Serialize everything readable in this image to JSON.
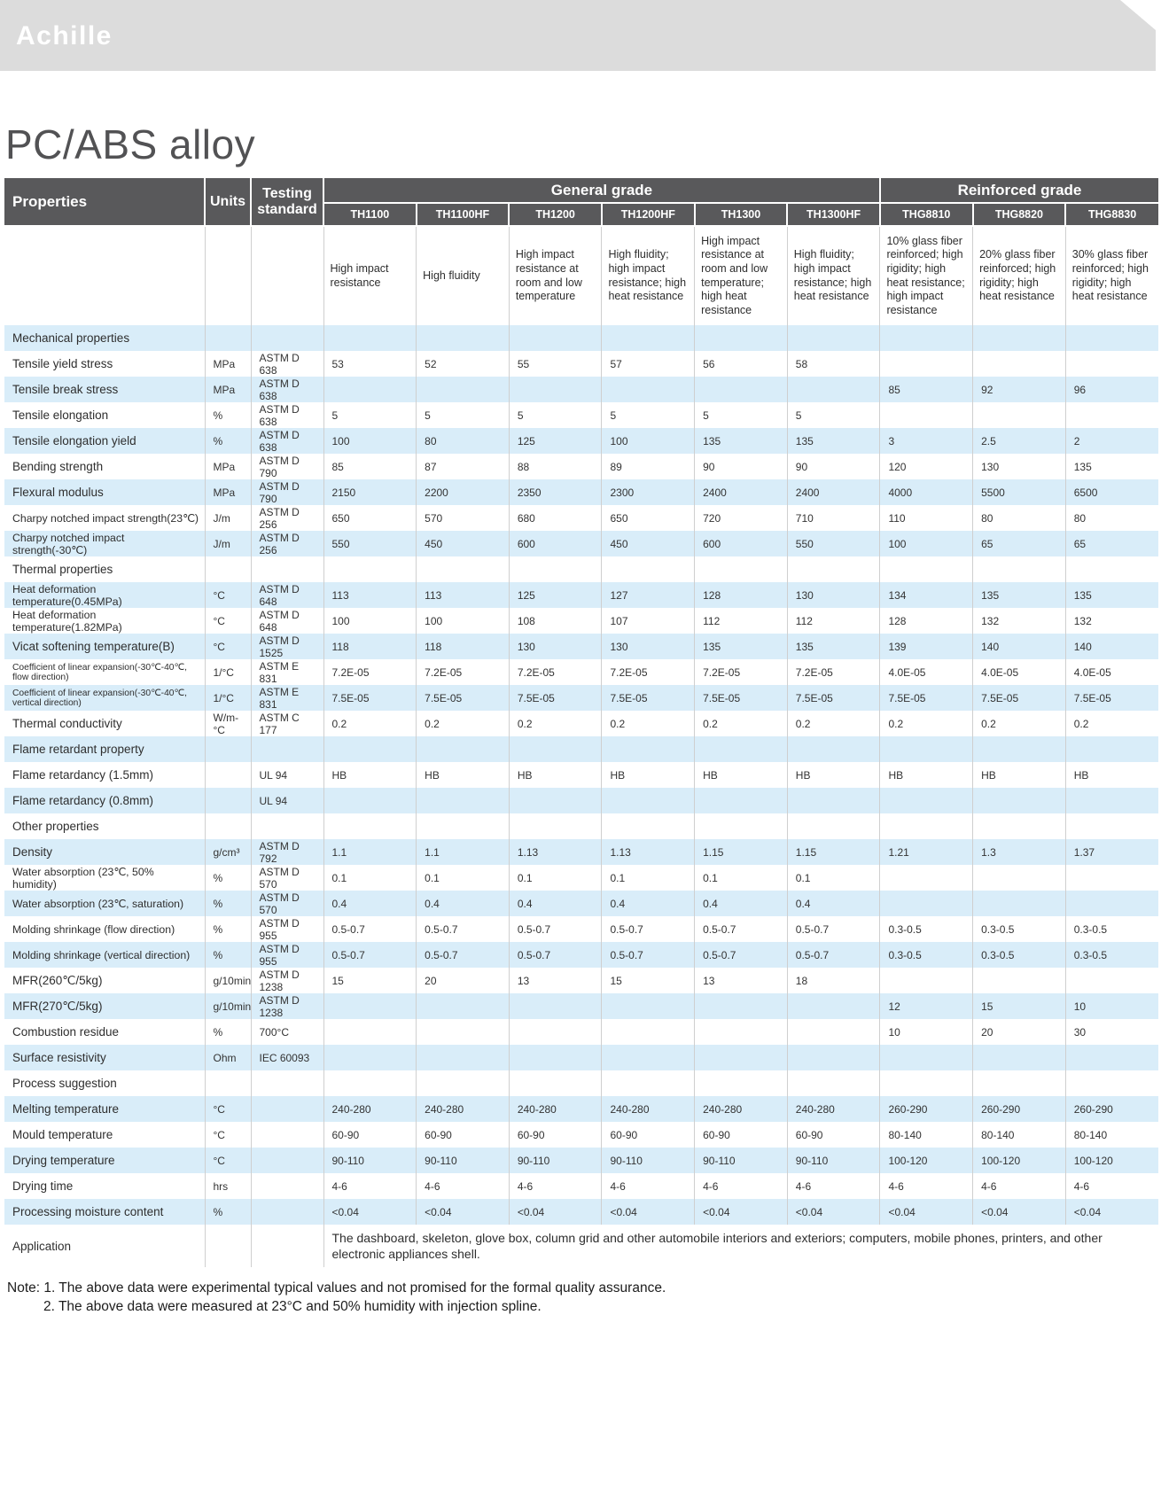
{
  "brand": "Achille",
  "page_title": "PC/ABS alloy",
  "table": {
    "col_headers": {
      "properties": "Properties",
      "units": "Units",
      "testing_standard": "Testing standard"
    },
    "groups": [
      {
        "label": "General grade",
        "span": 6
      },
      {
        "label": "Reinforced grade",
        "span": 3
      }
    ],
    "grades": [
      "TH1100",
      "TH1100HF",
      "TH1200",
      "TH1200HF",
      "TH1300",
      "TH1300HF",
      "THG8810",
      "THG8820",
      "THG8830"
    ],
    "descriptions": [
      "High impact resistance",
      "High fluidity",
      "High impact resistance at room and low temperature",
      "High fluidity; high impact resistance; high heat resistance",
      "High impact resistance at room and low temperature; high heat resistance",
      "High fluidity; high impact resistance; high heat resistance",
      "10% glass fiber reinforced; high rigidity; high heat resistance; high impact resistance",
      "20% glass fiber reinforced; high rigidity; high heat resistance",
      "30% glass fiber reinforced; high rigidity; high heat resistance"
    ],
    "rows": [
      {
        "type": "section",
        "label": "Mechanical properties"
      },
      {
        "label": "Tensile yield stress",
        "unit": "MPa",
        "standard": "ASTM D 638",
        "values": [
          "53",
          "52",
          "55",
          "57",
          "56",
          "58",
          "",
          "",
          ""
        ]
      },
      {
        "label": "Tensile break stress",
        "unit": "MPa",
        "standard": "ASTM D 638",
        "values": [
          "",
          "",
          "",
          "",
          "",
          "",
          "85",
          "92",
          "96"
        ]
      },
      {
        "label": "Tensile elongation",
        "unit": "%",
        "standard": "ASTM D 638",
        "values": [
          "5",
          "5",
          "5",
          "5",
          "5",
          "5",
          "",
          "",
          ""
        ]
      },
      {
        "label": "Tensile elongation yield",
        "unit": "%",
        "standard": "ASTM D 638",
        "values": [
          "100",
          "80",
          "125",
          "100",
          "135",
          "135",
          "3",
          "2.5",
          "2"
        ]
      },
      {
        "label": "Bending strength",
        "unit": "MPa",
        "standard": "ASTM D 790",
        "values": [
          "85",
          "87",
          "88",
          "89",
          "90",
          "90",
          "120",
          "130",
          "135"
        ]
      },
      {
        "label": "Flexural modulus",
        "unit": "MPa",
        "standard": "ASTM D 790",
        "values": [
          "2150",
          "2200",
          "2350",
          "2300",
          "2400",
          "2400",
          "4000",
          "5500",
          "6500"
        ]
      },
      {
        "label": "Charpy notched impact strength(23℃)",
        "unit": "J/m",
        "standard": "ASTM D 256",
        "values": [
          "650",
          "570",
          "680",
          "650",
          "720",
          "710",
          "110",
          "80",
          "80"
        ]
      },
      {
        "label": "Charpy notched impact strength(-30℃)",
        "unit": "J/m",
        "standard": "ASTM D 256",
        "values": [
          "550",
          "450",
          "600",
          "450",
          "600",
          "550",
          "100",
          "65",
          "65"
        ]
      },
      {
        "type": "section",
        "label": "Thermal properties"
      },
      {
        "label": "Heat deformation temperature(0.45MPa)",
        "unit": "°C",
        "standard": "ASTM D 648",
        "values": [
          "113",
          "113",
          "125",
          "127",
          "128",
          "130",
          "134",
          "135",
          "135"
        ]
      },
      {
        "label": "Heat deformation temperature(1.82MPa)",
        "unit": "°C",
        "standard": "ASTM D 648",
        "values": [
          "100",
          "100",
          "108",
          "107",
          "112",
          "112",
          "128",
          "132",
          "132"
        ]
      },
      {
        "label": "Vicat softening temperature(B)",
        "unit": "°C",
        "standard": "ASTM D 1525",
        "values": [
          "118",
          "118",
          "130",
          "130",
          "135",
          "135",
          "139",
          "140",
          "140"
        ]
      },
      {
        "label": "Coefficient of linear expansion(-30℃-40℃, flow direction)",
        "unit": "1/°C",
        "standard": "ASTM E 831",
        "values": [
          "7.2E-05",
          "7.2E-05",
          "7.2E-05",
          "7.2E-05",
          "7.2E-05",
          "7.2E-05",
          "4.0E-05",
          "4.0E-05",
          "4.0E-05"
        ]
      },
      {
        "label": "Coefficient of linear expansion(-30℃-40℃, vertical direction)",
        "unit": "1/°C",
        "standard": "ASTM E 831",
        "values": [
          "7.5E-05",
          "7.5E-05",
          "7.5E-05",
          "7.5E-05",
          "7.5E-05",
          "7.5E-05",
          "7.5E-05",
          "7.5E-05",
          "7.5E-05"
        ]
      },
      {
        "label": "Thermal conductivity",
        "unit": "W/m-°C",
        "standard": "ASTM C 177",
        "values": [
          "0.2",
          "0.2",
          "0.2",
          "0.2",
          "0.2",
          "0.2",
          "0.2",
          "0.2",
          "0.2"
        ]
      },
      {
        "type": "section",
        "label": "Flame retardant property"
      },
      {
        "label": "Flame retardancy (1.5mm)",
        "unit": "",
        "standard": "UL 94",
        "values": [
          "HB",
          "HB",
          "HB",
          "HB",
          "HB",
          "HB",
          "HB",
          "HB",
          "HB"
        ]
      },
      {
        "label": "Flame retardancy (0.8mm)",
        "unit": "",
        "standard": "UL 94",
        "values": [
          "",
          "",
          "",
          "",
          "",
          "",
          "",
          "",
          ""
        ]
      },
      {
        "type": "section",
        "label": "Other properties"
      },
      {
        "label": "Density",
        "unit": "g/cm³",
        "standard": "ASTM D 792",
        "values": [
          "1.1",
          "1.1",
          "1.13",
          "1.13",
          "1.15",
          "1.15",
          "1.21",
          "1.3",
          "1.37"
        ]
      },
      {
        "label": "Water absorption (23℃, 50% humidity)",
        "unit": "%",
        "standard": "ASTM D 570",
        "values": [
          "0.1",
          "0.1",
          "0.1",
          "0.1",
          "0.1",
          "0.1",
          "",
          "",
          ""
        ]
      },
      {
        "label": "Water absorption (23℃, saturation)",
        "unit": "%",
        "standard": "ASTM D 570",
        "values": [
          "0.4",
          "0.4",
          "0.4",
          "0.4",
          "0.4",
          "0.4",
          "",
          "",
          ""
        ]
      },
      {
        "label": "Molding shrinkage (flow direction)",
        "unit": "%",
        "standard": "ASTM D 955",
        "values": [
          "0.5-0.7",
          "0.5-0.7",
          "0.5-0.7",
          "0.5-0.7",
          "0.5-0.7",
          "0.5-0.7",
          "0.3-0.5",
          "0.3-0.5",
          "0.3-0.5"
        ]
      },
      {
        "label": "Molding shrinkage (vertical direction)",
        "unit": "%",
        "standard": "ASTM D 955",
        "values": [
          "0.5-0.7",
          "0.5-0.7",
          "0.5-0.7",
          "0.5-0.7",
          "0.5-0.7",
          "0.5-0.7",
          "0.3-0.5",
          "0.3-0.5",
          "0.3-0.5"
        ]
      },
      {
        "label": "MFR(260℃/5kg)",
        "unit": "g/10min",
        "standard": "ASTM D 1238",
        "values": [
          "15",
          "20",
          "13",
          "15",
          "13",
          "18",
          "",
          "",
          ""
        ]
      },
      {
        "label": "MFR(270℃/5kg)",
        "unit": "g/10min",
        "standard": "ASTM D 1238",
        "values": [
          "",
          "",
          "",
          "",
          "",
          "",
          "12",
          "15",
          "10"
        ]
      },
      {
        "label": "Combustion residue",
        "unit": "%",
        "standard": "700°C",
        "values": [
          "",
          "",
          "",
          "",
          "",
          "",
          "10",
          "20",
          "30"
        ]
      },
      {
        "label": "Surface resistivity",
        "unit": "Ohm",
        "standard": "IEC 60093",
        "values": [
          "",
          "",
          "",
          "",
          "",
          "",
          "",
          "",
          ""
        ]
      },
      {
        "type": "section",
        "label": "Process suggestion"
      },
      {
        "label": "Melting temperature",
        "unit": "°C",
        "standard": "",
        "values": [
          "240-280",
          "240-280",
          "240-280",
          "240-280",
          "240-280",
          "240-280",
          "260-290",
          "260-290",
          "260-290"
        ]
      },
      {
        "label": "Mould temperature",
        "unit": "°C",
        "standard": "",
        "values": [
          "60-90",
          "60-90",
          "60-90",
          "60-90",
          "60-90",
          "60-90",
          "80-140",
          "80-140",
          "80-140"
        ]
      },
      {
        "label": "Drying temperature",
        "unit": "°C",
        "standard": "",
        "values": [
          "90-110",
          "90-110",
          "90-110",
          "90-110",
          "90-110",
          "90-110",
          "100-120",
          "100-120",
          "100-120"
        ]
      },
      {
        "label": "Drying time",
        "unit": "hrs",
        "standard": "",
        "values": [
          "4-6",
          "4-6",
          "4-6",
          "4-6",
          "4-6",
          "4-6",
          "4-6",
          "4-6",
          "4-6"
        ]
      },
      {
        "label": "Processing moisture content",
        "unit": "%",
        "standard": "",
        "values": [
          "<0.04",
          "<0.04",
          "<0.04",
          "<0.04",
          "<0.04",
          "<0.04",
          "<0.04",
          "<0.04",
          "<0.04"
        ]
      },
      {
        "type": "application",
        "label": "Application",
        "text": "The dashboard, skeleton, glove box, column grid and other automobile interiors and exteriors; computers, mobile phones, printers, and other electronic appliances shell."
      }
    ]
  },
  "notes": [
    "Note: 1. The above data were experimental typical values and not promised for the formal quality assurance.",
    "2. The above data were measured at 23°C and 50% humidity with injection spline."
  ]
}
